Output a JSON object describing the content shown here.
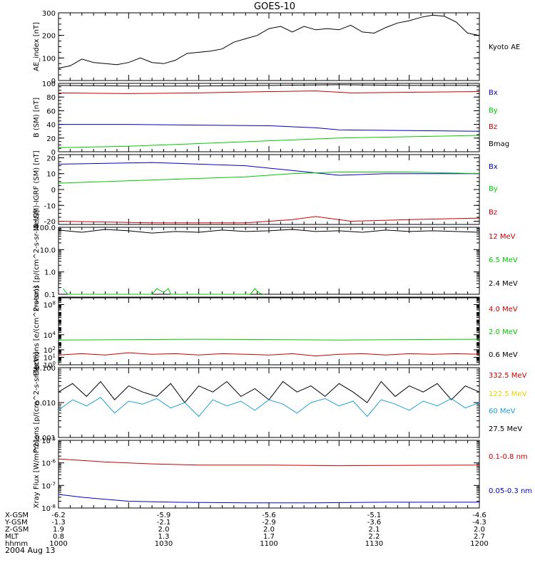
{
  "title": "GOES-10",
  "date_label": "2004 Aug 13",
  "colors": {
    "black": "#000000",
    "red": "#cc0000",
    "green": "#00cc00",
    "blue": "#0000cc",
    "yellow": "#e6d200",
    "cyan": "#1fa2d6"
  },
  "chart_data": [
    {
      "type": "line",
      "ylabel": "AE_index [nT]",
      "ylim": [
        0,
        300
      ],
      "yticks": [
        0,
        100,
        200,
        300
      ],
      "ytick_labels": [
        "0",
        "100",
        "200",
        "300"
      ],
      "legend": [
        {
          "name": "Kyoto AE",
          "color": "black"
        }
      ],
      "series": [
        {
          "name": "Kyoto AE",
          "color": "black",
          "x": [
            0,
            5,
            10,
            15,
            20,
            25,
            30,
            35,
            40,
            45,
            50,
            55,
            60,
            65,
            70,
            75,
            80,
            85,
            90,
            95,
            100,
            105,
            110,
            115,
            120,
            125,
            130,
            135,
            140,
            145,
            150,
            155,
            160,
            165,
            170,
            175,
            180
          ],
          "values": [
            55,
            65,
            95,
            80,
            75,
            70,
            80,
            100,
            80,
            75,
            90,
            120,
            125,
            130,
            140,
            170,
            185,
            200,
            230,
            240,
            215,
            240,
            225,
            230,
            225,
            245,
            215,
            210,
            235,
            255,
            265,
            280,
            290,
            285,
            260,
            210,
            200
          ]
        }
      ]
    },
    {
      "type": "line",
      "ylabel": "B (SM) [nT]",
      "ylim": [
        0,
        100
      ],
      "yticks": [
        0,
        20,
        40,
        60,
        80,
        100
      ],
      "ytick_labels": [
        "0",
        "20",
        "40",
        "60",
        "80",
        "100"
      ],
      "legend": [
        {
          "name": "Bx",
          "color": "blue"
        },
        {
          "name": "By",
          "color": "green"
        },
        {
          "name": "Bz",
          "color": "red"
        },
        {
          "name": "Bmag",
          "color": "black"
        }
      ],
      "series": [
        {
          "name": "Bmag",
          "color": "black",
          "x": [
            0,
            30,
            60,
            90,
            120,
            150,
            180
          ],
          "values": [
            97,
            96,
            96,
            97,
            98,
            97,
            97
          ]
        },
        {
          "name": "Bz",
          "color": "red",
          "x": [
            0,
            30,
            60,
            90,
            110,
            125,
            150,
            180
          ],
          "values": [
            86,
            85,
            86,
            88,
            89,
            86,
            87,
            88
          ]
        },
        {
          "name": "Bx",
          "color": "blue",
          "x": [
            0,
            30,
            60,
            90,
            110,
            120,
            150,
            180
          ],
          "values": [
            40,
            40,
            39,
            38,
            35,
            32,
            31,
            30
          ]
        },
        {
          "name": "By",
          "color": "green",
          "x": [
            0,
            30,
            60,
            90,
            120,
            150,
            180
          ],
          "values": [
            6,
            8,
            12,
            16,
            20,
            22,
            24
          ]
        }
      ]
    },
    {
      "type": "line",
      "ylabel": "B (SM)-IGRF (SM) [nT]",
      "ylim": [
        -22,
        22
      ],
      "yticks": [
        -20,
        -10,
        0,
        10,
        20
      ],
      "ytick_labels": [
        "-20",
        "-10",
        "0",
        "10",
        "20"
      ],
      "legend": [
        {
          "name": "Bx",
          "color": "blue"
        },
        {
          "name": "By",
          "color": "green"
        },
        {
          "name": "Bz",
          "color": "red"
        }
      ],
      "series": [
        {
          "name": "Bx",
          "color": "blue",
          "x": [
            0,
            40,
            80,
            100,
            120,
            140,
            180
          ],
          "values": [
            16,
            17,
            15,
            12,
            9,
            10,
            10
          ]
        },
        {
          "name": "By",
          "color": "green",
          "x": [
            0,
            40,
            80,
            100,
            120,
            150,
            180
          ],
          "values": [
            4,
            6,
            8,
            10,
            11,
            11,
            10
          ]
        },
        {
          "name": "Bz",
          "color": "red",
          "x": [
            0,
            40,
            80,
            100,
            110,
            125,
            150,
            180
          ],
          "values": [
            -20,
            -21,
            -21,
            -19,
            -17,
            -20,
            -19,
            -18
          ]
        }
      ]
    },
    {
      "type": "line",
      "ylabel": "Protons [p/(cm^2-s-sr-MeV)]",
      "ylim": [
        0.1,
        100
      ],
      "log": true,
      "yticks": [
        0.1,
        1,
        10,
        100
      ],
      "ytick_labels": [
        "0.1",
        "1.0",
        "10.0",
        "100.0"
      ],
      "legend": [
        {
          "name": "12 MeV",
          "color": "red"
        },
        {
          "name": "6.5 MeV",
          "color": "green"
        },
        {
          "name": "2.4 MeV",
          "color": "black"
        }
      ],
      "series": [
        {
          "name": "2.4 MeV",
          "color": "black",
          "x": [
            0,
            10,
            20,
            30,
            40,
            50,
            60,
            70,
            80,
            90,
            100,
            110,
            120,
            130,
            140,
            150,
            160,
            170,
            180
          ],
          "values": [
            75,
            60,
            80,
            70,
            55,
            65,
            60,
            75,
            65,
            70,
            80,
            65,
            70,
            60,
            75,
            65,
            70,
            65,
            60
          ]
        },
        {
          "name": "6.5 MeV",
          "color": "green",
          "x": [
            2,
            3,
            4,
            17,
            19,
            33,
            35,
            40,
            42,
            45,
            47,
            48,
            52,
            70,
            78,
            82,
            84,
            86,
            88
          ],
          "values": [
            0.18,
            0.13,
            0.1,
            0.1,
            0.1,
            0.1,
            0.1,
            0.1,
            0.18,
            0.12,
            0.18,
            0.1,
            0.1,
            0.1,
            0.1,
            0.1,
            0.18,
            0.11,
            0.1
          ]
        }
      ]
    },
    {
      "type": "line",
      "ylabel": "Electrons [e/(cm^2-s-sr)]",
      "ylim": [
        1,
        1000000000
      ],
      "log": true,
      "yticks": [
        1,
        10,
        100,
        10000,
        100000000
      ],
      "ytick_labels": [
        "10^0",
        "10^1",
        "10^2",
        "10^4",
        "10^8"
      ],
      "legend": [
        {
          "name": "4.0 MeV",
          "color": "red"
        },
        {
          "name": "2.0 MeV",
          "color": "green"
        },
        {
          "name": "0.6 MeV",
          "color": "black"
        }
      ],
      "series": [
        {
          "name": "0.6 MeV",
          "color": "black",
          "x": [
            0,
            60,
            120,
            180
          ],
          "values": [
            800000000,
            800000000,
            800000000,
            800000000
          ]
        },
        {
          "name": "2.0 MeV",
          "color": "green",
          "x": [
            0,
            60,
            120,
            180
          ],
          "values": [
            2000,
            2500,
            2000,
            2500
          ]
        },
        {
          "name": "4.0 MeV",
          "color": "red",
          "x": [
            0,
            10,
            20,
            30,
            40,
            50,
            60,
            70,
            80,
            90,
            100,
            110,
            120,
            130,
            140,
            150,
            160,
            170,
            180
          ],
          "values": [
            20,
            30,
            20,
            40,
            25,
            30,
            20,
            30,
            25,
            20,
            30,
            15,
            25,
            30,
            20,
            30,
            25,
            30,
            25
          ]
        }
      ]
    },
    {
      "type": "line",
      "ylabel": "Protons [p/(cm^2-s-sr-MeV)]",
      "ylim": [
        0.001,
        0.1
      ],
      "log": true,
      "yticks": [
        0.001,
        0.01,
        0.1
      ],
      "ytick_labels": [
        "0.001",
        "0.010",
        "0.100"
      ],
      "legend": [
        {
          "name": "332.5 MeV",
          "color": "red"
        },
        {
          "name": "122.5 MeV",
          "color": "yellow"
        },
        {
          "name": "60 MeV",
          "color": "cyan"
        },
        {
          "name": "27.5 MeV",
          "color": "black"
        }
      ],
      "series": [
        {
          "name": "27.5 MeV",
          "color": "black",
          "x": [
            0,
            6,
            12,
            18,
            24,
            30,
            36,
            42,
            48,
            54,
            60,
            66,
            72,
            78,
            84,
            90,
            96,
            102,
            108,
            114,
            120,
            126,
            132,
            138,
            144,
            150,
            156,
            162,
            168,
            174,
            180
          ],
          "values": [
            0.02,
            0.035,
            0.015,
            0.04,
            0.012,
            0.03,
            0.02,
            0.015,
            0.035,
            0.01,
            0.03,
            0.02,
            0.04,
            0.015,
            0.025,
            0.012,
            0.04,
            0.02,
            0.03,
            0.015,
            0.035,
            0.02,
            0.01,
            0.04,
            0.015,
            0.03,
            0.02,
            0.035,
            0.012,
            0.03,
            0.02
          ]
        },
        {
          "name": "60 MeV",
          "color": "cyan",
          "x": [
            0,
            6,
            12,
            18,
            24,
            30,
            36,
            42,
            48,
            54,
            60,
            66,
            72,
            78,
            84,
            90,
            96,
            102,
            108,
            114,
            120,
            126,
            132,
            138,
            144,
            150,
            156,
            162,
            168,
            174,
            180
          ],
          "values": [
            0.006,
            0.012,
            0.008,
            0.014,
            0.005,
            0.011,
            0.009,
            0.013,
            0.007,
            0.01,
            0.004,
            0.012,
            0.008,
            0.011,
            0.006,
            0.012,
            0.009,
            0.005,
            0.01,
            0.013,
            0.008,
            0.011,
            0.004,
            0.012,
            0.009,
            0.006,
            0.011,
            0.008,
            0.013,
            0.007,
            0.01
          ]
        }
      ]
    },
    {
      "type": "line",
      "ylabel": "Xray Flux [W/m^2]",
      "ylim": [
        1e-08,
        1e-05
      ],
      "log": true,
      "yticks": [
        1e-08,
        1e-07,
        1e-06,
        1e-05
      ],
      "ytick_labels": [
        "10^-8",
        "10^-7",
        "10^-6",
        "10^-5"
      ],
      "legend": [
        {
          "name": "0.1-0.8 nm",
          "color": "red"
        },
        {
          "name": "0.05-0.3 nm",
          "color": "blue"
        }
      ],
      "series": [
        {
          "name": "0.1-0.8 nm",
          "color": "red",
          "x": [
            0,
            20,
            40,
            60,
            90,
            120,
            150,
            180
          ],
          "values": [
            1.5e-06,
            1.1e-06,
            9e-07,
            8e-07,
            8e-07,
            7.5e-07,
            7.8e-07,
            8e-07
          ]
        },
        {
          "name": "0.05-0.3 nm",
          "color": "blue",
          "x": [
            0,
            10,
            30,
            50,
            80,
            110,
            140,
            180
          ],
          "values": [
            4e-08,
            3e-08,
            2e-08,
            1.8e-08,
            1.7e-08,
            1.7e-08,
            1.8e-08,
            1.8e-08
          ]
        }
      ]
    }
  ],
  "xaxis": {
    "x_range": [
      0,
      180
    ],
    "tick_x": [
      0,
      30,
      60,
      90,
      120,
      150,
      180
    ],
    "rows": [
      {
        "label": "X-GSM",
        "values": [
          "-6.2",
          "",
          "-5.9",
          "",
          "-5.6",
          "",
          "-5.1",
          "",
          "-4.6"
        ]
      },
      {
        "label": "Y-GSM",
        "values": [
          "-1.3",
          "",
          "-2.1",
          "",
          "-2.9",
          "",
          "-3.6",
          "",
          "-4.3"
        ]
      },
      {
        "label": "Z-GSM",
        "values": [
          "1.9",
          "",
          "2.0",
          "",
          "2.0",
          "",
          "2.1",
          "",
          "2.0"
        ]
      },
      {
        "label": "MLT",
        "values": [
          "0.8",
          "",
          "1.3",
          "",
          "1.7",
          "",
          "2.2",
          "",
          "2.7"
        ]
      },
      {
        "label": "hhmm",
        "values": [
          "1000",
          "",
          "1030",
          "",
          "1100",
          "",
          "1130",
          "",
          "1200"
        ]
      }
    ]
  }
}
